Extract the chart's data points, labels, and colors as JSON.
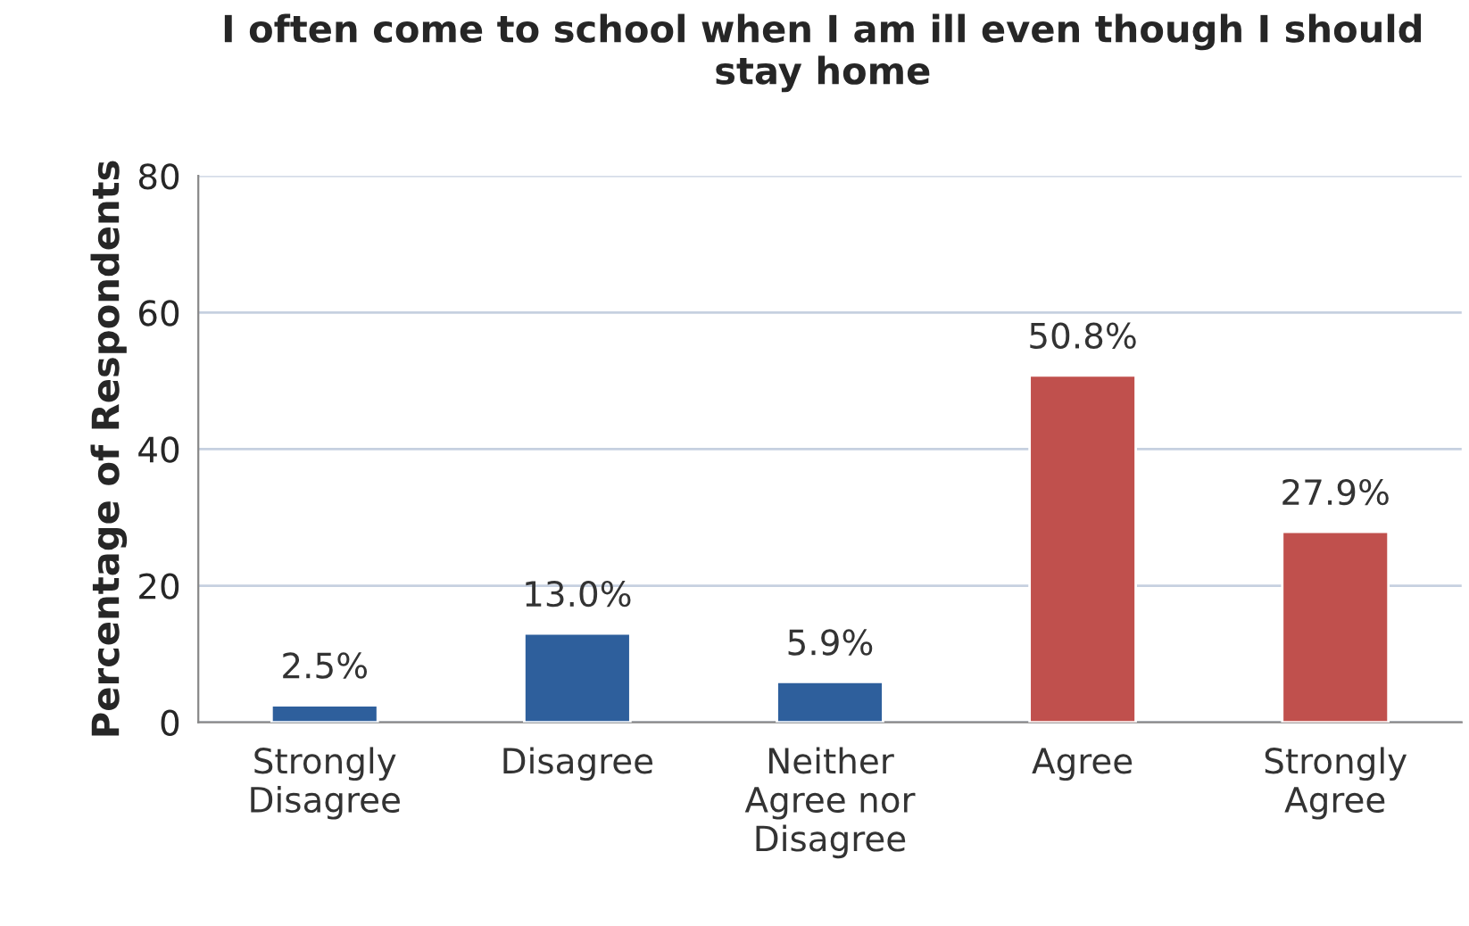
{
  "chart_data": {
    "type": "bar",
    "title": "I often come to school when I am ill even though I should stay home",
    "ylabel": "Percentage of Respondents",
    "categories": [
      "Strongly\nDisagree",
      "Disagree",
      "Neither\nAgree nor\nDisagree",
      "Agree",
      "Strongly\nAgree"
    ],
    "values": [
      2.5,
      13.0,
      5.9,
      50.8,
      27.9
    ],
    "colors": [
      "#2e5f9c",
      "#2e5f9c",
      "#2e5f9c",
      "#c0504d",
      "#c0504d"
    ],
    "value_labels": [
      "2.5%",
      "13.0%",
      "5.9%",
      "50.8%",
      "27.9%"
    ],
    "ylim": [
      0,
      80
    ],
    "yticks": [
      0,
      20,
      40,
      60,
      80
    ],
    "grid": "y"
  }
}
